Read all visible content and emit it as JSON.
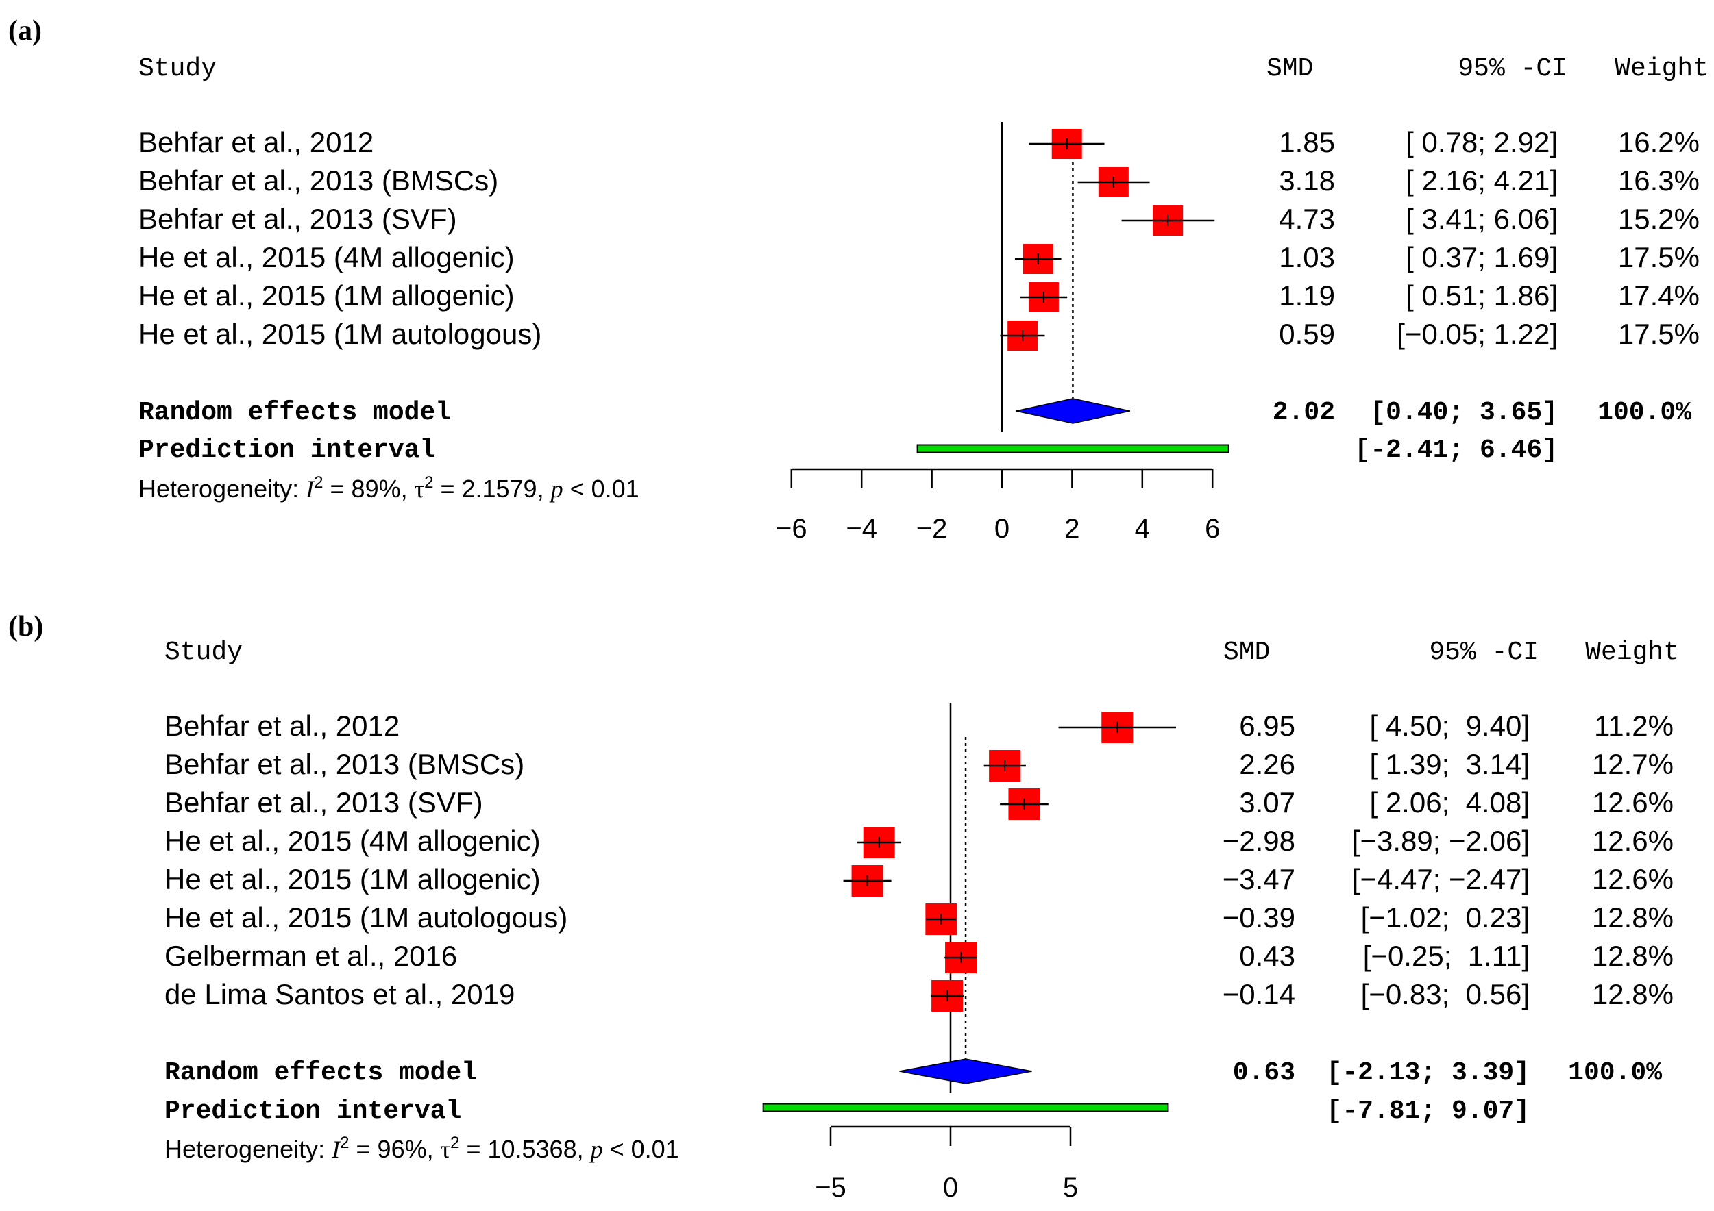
{
  "panels": [
    {
      "label": "(a)",
      "chart_data": {
        "type": "forest",
        "measure": "SMD",
        "columns": {
          "study": "Study",
          "smd": "SMD",
          "ci": "95% -CI",
          "weight": "Weight"
        },
        "studies": [
          {
            "name": "Behfar et al., 2012",
            "smd": 1.85,
            "lower": 0.78,
            "upper": 2.92,
            "smd_text": "1.85",
            "ci_text": "[ 0.78; 2.92]",
            "weight_text": "16.2%"
          },
          {
            "name": "Behfar et al., 2013 (BMSCs)",
            "smd": 3.18,
            "lower": 2.16,
            "upper": 4.21,
            "smd_text": "3.18",
            "ci_text": "[ 2.16; 4.21]",
            "weight_text": "16.3%"
          },
          {
            "name": "Behfar et al., 2013 (SVF)",
            "smd": 4.73,
            "lower": 3.41,
            "upper": 6.06,
            "smd_text": "4.73",
            "ci_text": "[ 3.41; 6.06]",
            "weight_text": "15.2%"
          },
          {
            "name": "He et al., 2015 (4M allogenic)",
            "smd": 1.03,
            "lower": 0.37,
            "upper": 1.69,
            "smd_text": "1.03",
            "ci_text": "[ 0.37; 1.69]",
            "weight_text": "17.5%"
          },
          {
            "name": "He et al., 2015 (1M allogenic)",
            "smd": 1.19,
            "lower": 0.51,
            "upper": 1.86,
            "smd_text": "1.19",
            "ci_text": "[ 0.51; 1.86]",
            "weight_text": "17.4%"
          },
          {
            "name": "He et al., 2015 (1M autologous)",
            "smd": 0.59,
            "lower": -0.05,
            "upper": 1.22,
            "smd_text": "0.59",
            "ci_text": "[−0.05; 1.22]",
            "weight_text": "17.5%"
          }
        ],
        "random_effects": {
          "label": "Random effects model",
          "smd": 2.02,
          "lower": 0.4,
          "upper": 3.65,
          "smd_text": "2.02",
          "ci_text": "[0.40; 3.65]",
          "weight_text": "100.0%"
        },
        "prediction_interval": {
          "label": "Prediction interval",
          "lower": -2.41,
          "upper": 6.46,
          "ci_text": "[-2.41; 6.46]"
        },
        "heterogeneity": {
          "prefix": "Heterogeneity: ",
          "i2_value": " = 89%, ",
          "tau2_value": " = 2.1579, ",
          "p_text": " < 0.01"
        },
        "xlim": [
          -6,
          6
        ],
        "ticks": [
          -6,
          -4,
          -2,
          0,
          2,
          4,
          6
        ],
        "tick_labels": [
          "−6",
          "−4",
          "−2",
          "0",
          "2",
          "4",
          "6"
        ]
      }
    },
    {
      "label": "(b)",
      "chart_data": {
        "type": "forest",
        "measure": "SMD",
        "columns": {
          "study": "Study",
          "smd": "SMD",
          "ci": "95% -CI",
          "weight": "Weight"
        },
        "studies": [
          {
            "name": "Behfar et al., 2012",
            "smd": 6.95,
            "lower": 4.5,
            "upper": 9.4,
            "smd_text": "6.95",
            "ci_text": "[ 4.50;  9.40]",
            "weight_text": "11.2%"
          },
          {
            "name": "Behfar et al., 2013 (BMSCs)",
            "smd": 2.26,
            "lower": 1.39,
            "upper": 3.14,
            "smd_text": "2.26",
            "ci_text": "[ 1.39;  3.14]",
            "weight_text": "12.7%"
          },
          {
            "name": "Behfar et al., 2013 (SVF)",
            "smd": 3.07,
            "lower": 2.06,
            "upper": 4.08,
            "smd_text": "3.07",
            "ci_text": "[ 2.06;  4.08]",
            "weight_text": "12.6%"
          },
          {
            "name": "He et al., 2015 (4M allogenic)",
            "smd": -2.98,
            "lower": -3.89,
            "upper": -2.06,
            "smd_text": "−2.98",
            "ci_text": "[−3.89; −2.06]",
            "weight_text": "12.6%"
          },
          {
            "name": "He et al., 2015 (1M allogenic)",
            "smd": -3.47,
            "lower": -4.47,
            "upper": -2.47,
            "smd_text": "−3.47",
            "ci_text": "[−4.47; −2.47]",
            "weight_text": "12.6%"
          },
          {
            "name": "He et al., 2015 (1M autologous)",
            "smd": -0.39,
            "lower": -1.02,
            "upper": 0.23,
            "smd_text": "−0.39",
            "ci_text": "[−1.02;  0.23]",
            "weight_text": "12.8%"
          },
          {
            "name": "Gelberman et al., 2016",
            "smd": 0.43,
            "lower": -0.25,
            "upper": 1.11,
            "smd_text": "0.43",
            "ci_text": "[−0.25;  1.11]",
            "weight_text": "12.8%"
          },
          {
            "name": "de Lima Santos et al., 2019",
            "smd": -0.14,
            "lower": -0.83,
            "upper": 0.56,
            "smd_text": "−0.14",
            "ci_text": "[−0.83;  0.56]",
            "weight_text": "12.8%"
          }
        ],
        "random_effects": {
          "label": "Random effects model",
          "smd": 0.63,
          "lower": -2.13,
          "upper": 3.39,
          "smd_text": "0.63",
          "ci_text": "[-2.13; 3.39]",
          "weight_text": "100.0%"
        },
        "prediction_interval": {
          "label": "Prediction interval",
          "lower": -7.81,
          "upper": 9.07,
          "ci_text": "[-7.81; 9.07]"
        },
        "heterogeneity": {
          "prefix": "Heterogeneity: ",
          "i2_value": " = 96%, ",
          "tau2_value": " = 10.5368, ",
          "p_text": " < 0.01"
        },
        "xlim": [
          -5,
          5
        ],
        "ticks": [
          -5,
          0,
          5
        ],
        "tick_labels": [
          "−5",
          "0",
          "5"
        ]
      }
    }
  ],
  "colors": {
    "square": "#ff0000",
    "diamond": "#0000ff",
    "prediction_bar": "#00dd00",
    "line": "#000000"
  }
}
